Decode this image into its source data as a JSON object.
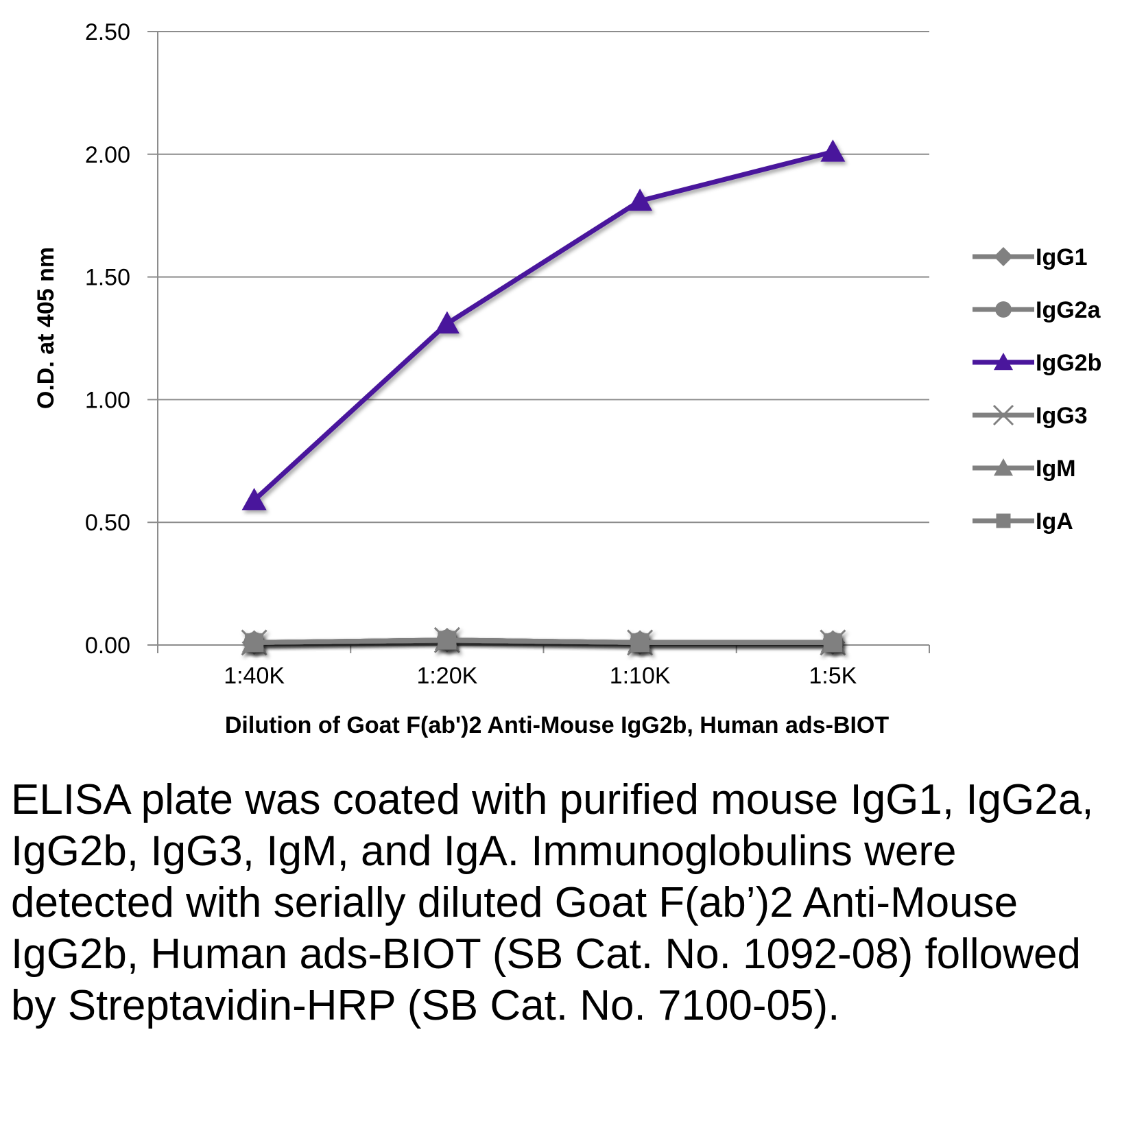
{
  "chart_data": {
    "type": "line",
    "title": "",
    "xlabel": "Dilution of Goat F(ab')2 Anti-Mouse IgG2b, Human ads-BIOT",
    "ylabel": "O.D. at 405 nm",
    "categories": [
      "1:40K",
      "1:20K",
      "1:10K",
      "1:5K"
    ],
    "ylim": [
      0,
      2.5
    ],
    "yticks": [
      "0.00",
      "0.50",
      "1.00",
      "1.50",
      "2.00",
      "2.50"
    ],
    "ytick_values": [
      0,
      0.5,
      1.0,
      1.5,
      2.0,
      2.5
    ],
    "grid": true,
    "legend_position": "right",
    "series": [
      {
        "name": "IgG1",
        "values": [
          0.01,
          0.02,
          0.01,
          0.01
        ],
        "color": "#808080",
        "marker": "diamond"
      },
      {
        "name": "IgG2a",
        "values": [
          0.01,
          0.02,
          0.01,
          0.01
        ],
        "color": "#808080",
        "marker": "circle"
      },
      {
        "name": "IgG3",
        "values": [
          0.01,
          0.02,
          0.01,
          0.01
        ],
        "color": "#808080",
        "marker": "x"
      },
      {
        "name": "IgM",
        "values": [
          0.01,
          0.02,
          0.01,
          0.01
        ],
        "color": "#808080",
        "marker": "triangle"
      },
      {
        "name": "IgA",
        "values": [
          0.01,
          0.02,
          0.01,
          0.01
        ],
        "color": "#808080",
        "marker": "square"
      },
      {
        "name": "IgG2b",
        "values": [
          0.59,
          1.31,
          1.81,
          2.01
        ],
        "color": "#4a169c",
        "marker": "triangle"
      }
    ],
    "legend_order": [
      "IgG1",
      "IgG2a",
      "IgG2b",
      "IgG3",
      "IgM",
      "IgA"
    ]
  },
  "caption": "ELISA plate was coated with purified mouse IgG1, IgG2a, IgG2b, IgG3, IgM, and IgA. Immunoglobulins were detected with serially diluted Goat F(ab’)2 Anti-Mouse IgG2b, Human ads-BIOT (SB Cat. No. 1092-08) followed by Streptavidin-HRP (SB Cat. No. 7100-05)."
}
